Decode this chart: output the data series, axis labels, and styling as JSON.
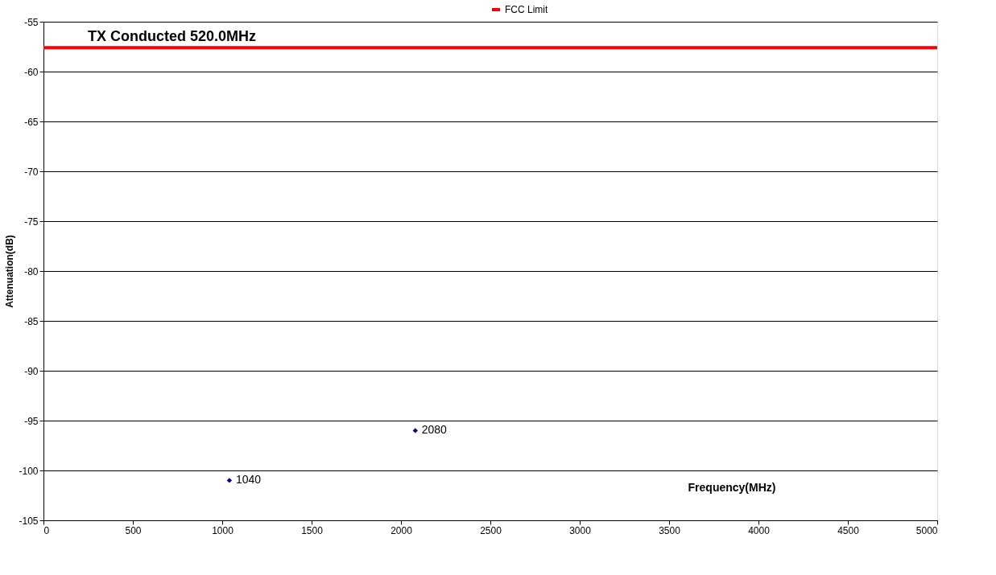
{
  "chart_data": {
    "type": "scatter",
    "title": "TX Conducted 520.0MHz",
    "xlabel": "Frequency(MHz)",
    "ylabel": "Attenuation(dB)",
    "series": [
      {
        "color": "#000080",
        "x": [
          1040,
          2080
        ],
        "values": [
          -101,
          -96
        ]
      }
    ],
    "annotations": [
      {
        "text": "1040",
        "x": 1040,
        "y": -101
      },
      {
        "text": "2080",
        "x": 2080,
        "y": -96
      }
    ],
    "xlim": [
      0,
      5000
    ],
    "xticks": [
      0,
      500,
      1000,
      1500,
      2000,
      2500,
      3000,
      3500,
      4000,
      4500,
      5000
    ],
    "ylim": [
      -105,
      -55
    ],
    "yticks": [
      -55,
      -60,
      -65,
      -70,
      -75,
      -80,
      -85,
      -90,
      -95,
      -100,
      -105
    ],
    "ref_lines": [
      {
        "axis": "y",
        "value": -57.6,
        "label": "FCC Limit",
        "color": "#ff0000"
      }
    ],
    "grid": "y",
    "marker": "diamond",
    "legend": "top"
  }
}
